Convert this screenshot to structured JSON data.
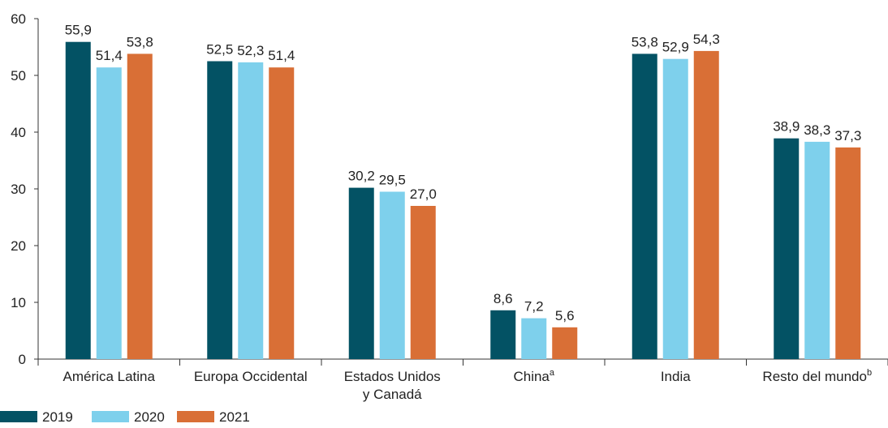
{
  "chart_data": {
    "type": "bar",
    "categories": [
      {
        "lines": [
          "América Latina"
        ],
        "sup": ""
      },
      {
        "lines": [
          "Europa Occidental"
        ],
        "sup": ""
      },
      {
        "lines": [
          "Estados Unidos",
          "y Canadá"
        ],
        "sup": ""
      },
      {
        "lines": [
          "China"
        ],
        "sup": "a"
      },
      {
        "lines": [
          "India"
        ],
        "sup": ""
      },
      {
        "lines": [
          "Resto del mundo"
        ],
        "sup": "b"
      }
    ],
    "series": [
      {
        "name": "2019",
        "color": "#035264",
        "values": [
          55.9,
          52.5,
          30.2,
          8.6,
          53.8,
          38.9
        ],
        "labels": [
          "55,9",
          "52,5",
          "30,2",
          "8,6",
          "53,8",
          "38,9"
        ]
      },
      {
        "name": "2020",
        "color": "#7ed0ec",
        "values": [
          51.4,
          52.3,
          29.5,
          7.2,
          52.9,
          38.3
        ],
        "labels": [
          "51,4",
          "52,3",
          "29,5",
          "7,2",
          "52,9",
          "38,3"
        ]
      },
      {
        "name": "2021",
        "color": "#d96f36",
        "values": [
          53.8,
          51.4,
          27.0,
          5.6,
          54.3,
          37.3
        ],
        "labels": [
          "53,8",
          "51,4",
          "27,0",
          "5,6",
          "54,3",
          "37,3"
        ]
      }
    ],
    "yticks": [
      0,
      10,
      20,
      30,
      40,
      50,
      60
    ],
    "ylim": [
      0,
      60
    ],
    "title": "",
    "xlabel": "",
    "ylabel": "",
    "grid": false,
    "legend_position": "bottom-left"
  }
}
